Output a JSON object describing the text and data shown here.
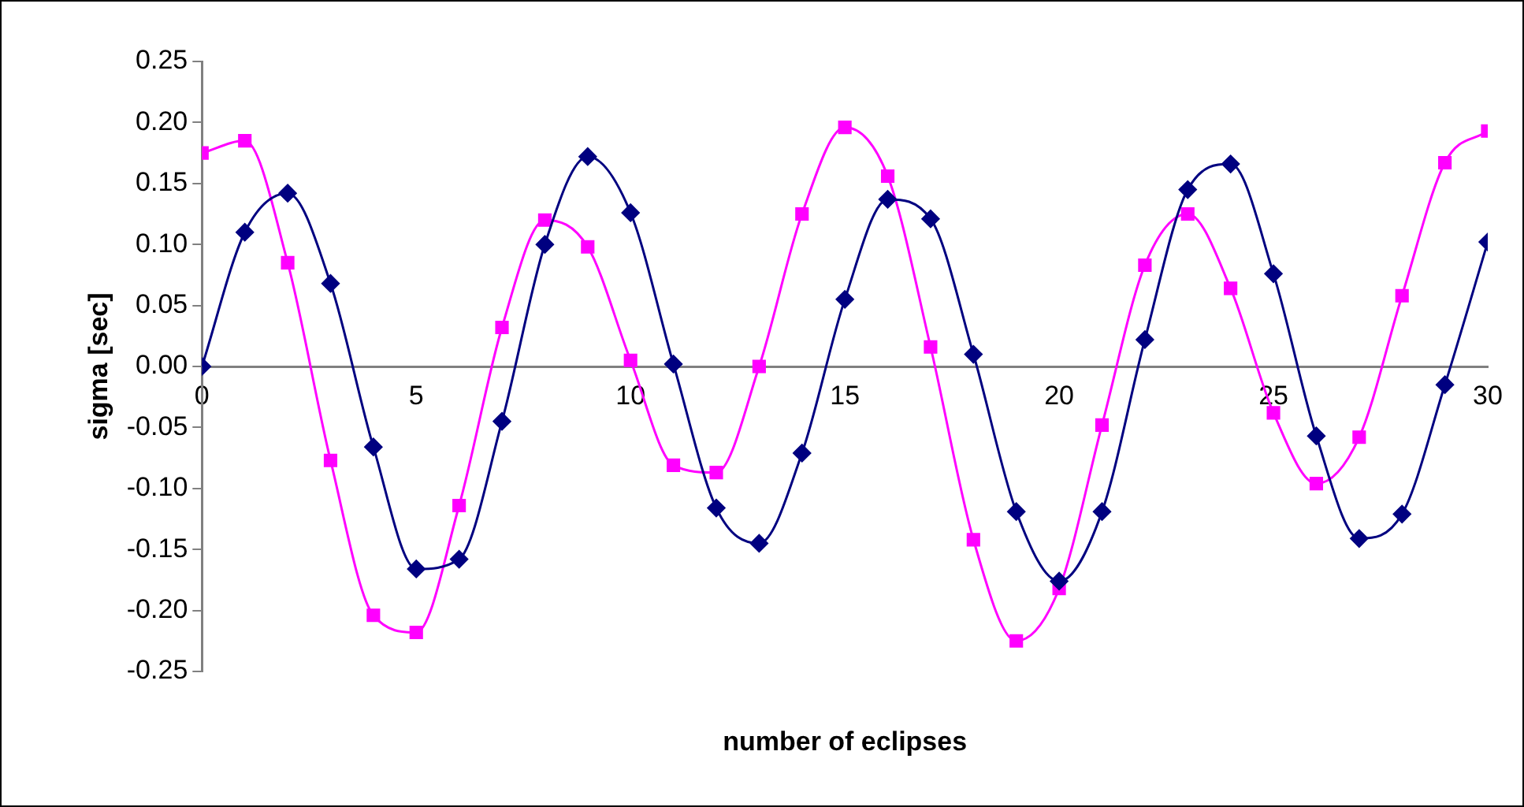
{
  "chart_data": {
    "type": "line",
    "xlabel": "number of eclipses",
    "ylabel": "sigma [sec]",
    "xlim": [
      0,
      30
    ],
    "xticks": [
      0,
      5,
      10,
      15,
      20,
      25,
      30
    ],
    "ylim": [
      -0.25,
      0.25
    ],
    "yticks": [
      {
        "value": -0.25,
        "label": "-0.25"
      },
      {
        "value": -0.2,
        "label": "-0.20"
      },
      {
        "value": -0.15,
        "label": "-0.15"
      },
      {
        "value": -0.1,
        "label": "-0.10"
      },
      {
        "value": -0.05,
        "label": "-0.05"
      },
      {
        "value": 0,
        "label": "0.00"
      },
      {
        "value": 0.05,
        "label": "0.05"
      },
      {
        "value": 0.1,
        "label": "0.10"
      },
      {
        "value": 0.15,
        "label": "0.15"
      },
      {
        "value": 0.2,
        "label": "0.20"
      },
      {
        "value": 0.25,
        "label": "0.25"
      }
    ],
    "grid": false,
    "legend": false,
    "x": [
      0,
      1,
      2,
      3,
      4,
      5,
      6,
      7,
      8,
      9,
      10,
      11,
      12,
      13,
      14,
      15,
      16,
      17,
      18,
      19,
      20,
      21,
      22,
      23,
      24,
      25,
      26,
      27,
      28,
      29,
      30
    ],
    "series": [
      {
        "color": "#000080",
        "marker": "diamond",
        "values": [
          0,
          0.11,
          0.142,
          0.068,
          -0.066,
          -0.166,
          -0.158,
          -0.045,
          0.1,
          0.172,
          0.126,
          0.002,
          -0.116,
          -0.145,
          -0.071,
          0.055,
          0.137,
          0.121,
          0.01,
          -0.119,
          -0.176,
          -0.119,
          0.022,
          0.145,
          0.166,
          0.076,
          -0.057,
          -0.141,
          -0.121,
          -0.015,
          0.102
        ]
      },
      {
        "color": "#ff00ff",
        "marker": "square",
        "values": [
          0.175,
          0.185,
          0.085,
          -0.077,
          -0.204,
          -0.218,
          -0.114,
          0.032,
          0.12,
          0.098,
          0.005,
          -0.081,
          -0.087,
          0,
          0.125,
          0.196,
          0.156,
          0.016,
          -0.142,
          -0.225,
          -0.182,
          -0.048,
          0.083,
          0.125,
          0.064,
          -0.038,
          -0.096,
          -0.058,
          0.058,
          0.167,
          0.193
        ]
      }
    ]
  }
}
